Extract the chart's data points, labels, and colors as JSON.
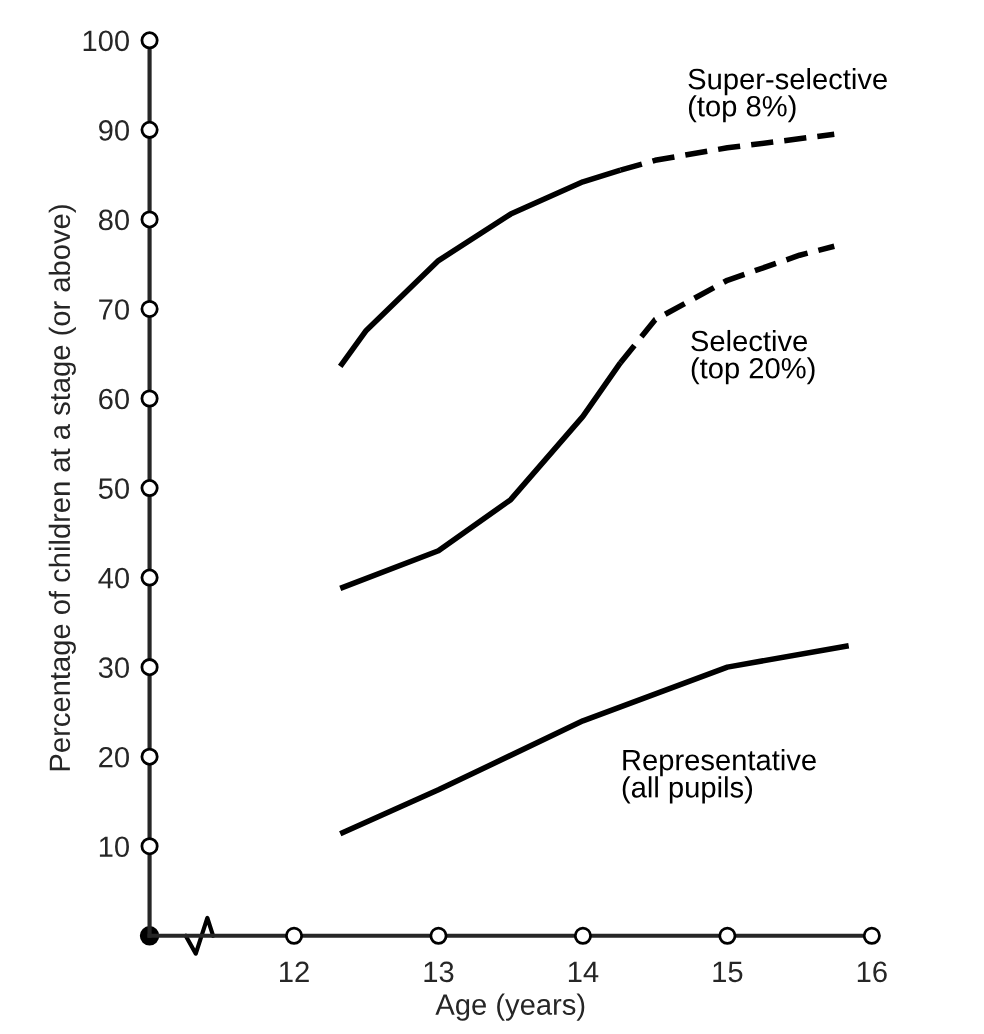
{
  "chart_data": {
    "type": "line",
    "xlabel": "Age (years)",
    "ylabel": "Percentage of children at a stage (or above)",
    "xlim": [
      11,
      16
    ],
    "xticks": [
      12,
      13,
      14,
      15,
      16
    ],
    "ylim": [
      0,
      100
    ],
    "yticks": [
      10,
      20,
      30,
      40,
      50,
      60,
      70,
      80,
      90,
      100
    ],
    "grid": false,
    "marker": "none",
    "series": [
      {
        "name": "Super-selective\n(top 8%)",
        "color": "#000000",
        "line_style": "solid",
        "x": [
          12.32,
          12.5,
          13,
          13.5,
          14,
          14.26
        ],
        "values": [
          63.6,
          67.6,
          75.4,
          80.6,
          84.2,
          85.5
        ]
      },
      {
        "color": "#000000",
        "line_style": "dashed",
        "x": [
          14.26,
          14.5,
          15,
          15.74
        ],
        "values": [
          85.5,
          86.6,
          88,
          89.5
        ]
      },
      {
        "name": "Selective\n(top 20%)",
        "color": "#000000",
        "line_style": "solid",
        "x": [
          12.32,
          13,
          13.5,
          14,
          14.26
        ],
        "values": [
          38.8,
          43,
          48.7,
          58,
          64
        ]
      },
      {
        "color": "#000000",
        "line_style": "dashed",
        "x": [
          14.26,
          14.5,
          15,
          15.5,
          15.74
        ],
        "values": [
          64,
          68.8,
          73.2,
          76,
          77
        ]
      },
      {
        "name": "Representative\n(all pupils)",
        "color": "#000000",
        "line_style": "solid",
        "x": [
          12.32,
          13,
          14,
          15,
          15.84
        ],
        "values": [
          11.4,
          16.3,
          24,
          30,
          32.4
        ]
      }
    ]
  }
}
